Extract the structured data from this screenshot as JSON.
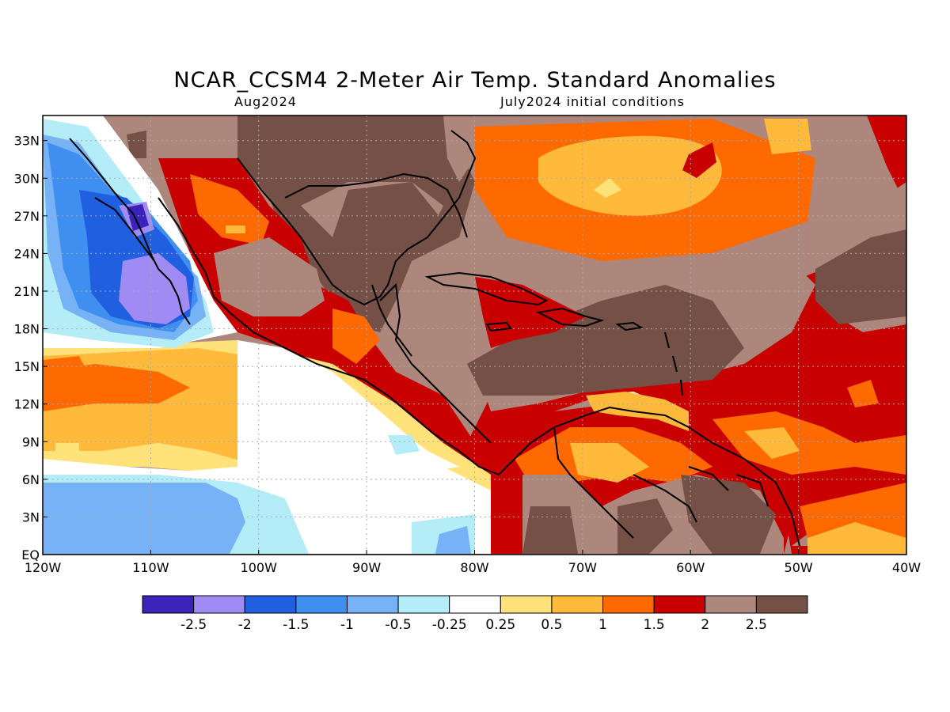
{
  "title": "NCAR_CCSM4 2-Meter Air Temp. Standard Anomalies",
  "subtitle_left": "Aug2024",
  "subtitle_right": "July2024 initial conditions",
  "map": {
    "lon_range": [
      -120,
      -40
    ],
    "lat_range": [
      0,
      35
    ],
    "lat_ticks": [
      {
        "value": 33,
        "label": "33N"
      },
      {
        "value": 30,
        "label": "30N"
      },
      {
        "value": 27,
        "label": "27N"
      },
      {
        "value": 24,
        "label": "24N"
      },
      {
        "value": 21,
        "label": "21N"
      },
      {
        "value": 18,
        "label": "18N"
      },
      {
        "value": 15,
        "label": "15N"
      },
      {
        "value": 12,
        "label": "12N"
      },
      {
        "value": 9,
        "label": "9N"
      },
      {
        "value": 6,
        "label": "6N"
      },
      {
        "value": 3,
        "label": "3N"
      },
      {
        "value": 0,
        "label": "EQ"
      }
    ],
    "lon_ticks": [
      {
        "value": -120,
        "label": "120W"
      },
      {
        "value": -110,
        "label": "110W"
      },
      {
        "value": -100,
        "label": "100W"
      },
      {
        "value": -90,
        "label": "90W"
      },
      {
        "value": -80,
        "label": "80W"
      },
      {
        "value": -70,
        "label": "70W"
      },
      {
        "value": -60,
        "label": "60W"
      },
      {
        "value": -50,
        "label": "50W"
      },
      {
        "value": -40,
        "label": "40W"
      }
    ],
    "grid": true
  },
  "colorbar": {
    "colors": [
      "#3b22b8",
      "#9f8bf3",
      "#2060e0",
      "#3f8ff0",
      "#76b2f5",
      "#b4ecf8",
      "#ffffff",
      "#ffe27a",
      "#ffba3c",
      "#ff6a00",
      "#c80000",
      "#ad867c",
      "#755047"
    ],
    "labels": [
      "-2.5",
      "-2",
      "-1.5",
      "-1",
      "-0.5",
      "-0.25",
      "0.25",
      "0.5",
      "1",
      "1.5",
      "2",
      "2.5"
    ]
  },
  "palette": {
    "land_brown": "#755047",
    "tan": "#ad867c",
    "dark_red": "#c80000",
    "orange": "#ff6a00",
    "light_orange": "#ffba3c",
    "yellow": "#ffe27a",
    "white": "#ffffff",
    "pale_blue": "#b4ecf8",
    "light_blue": "#76b2f5",
    "mid_blue": "#3f8ff0",
    "blue": "#2060e0",
    "lavender": "#9f8bf3",
    "purple": "#3b22b8"
  }
}
